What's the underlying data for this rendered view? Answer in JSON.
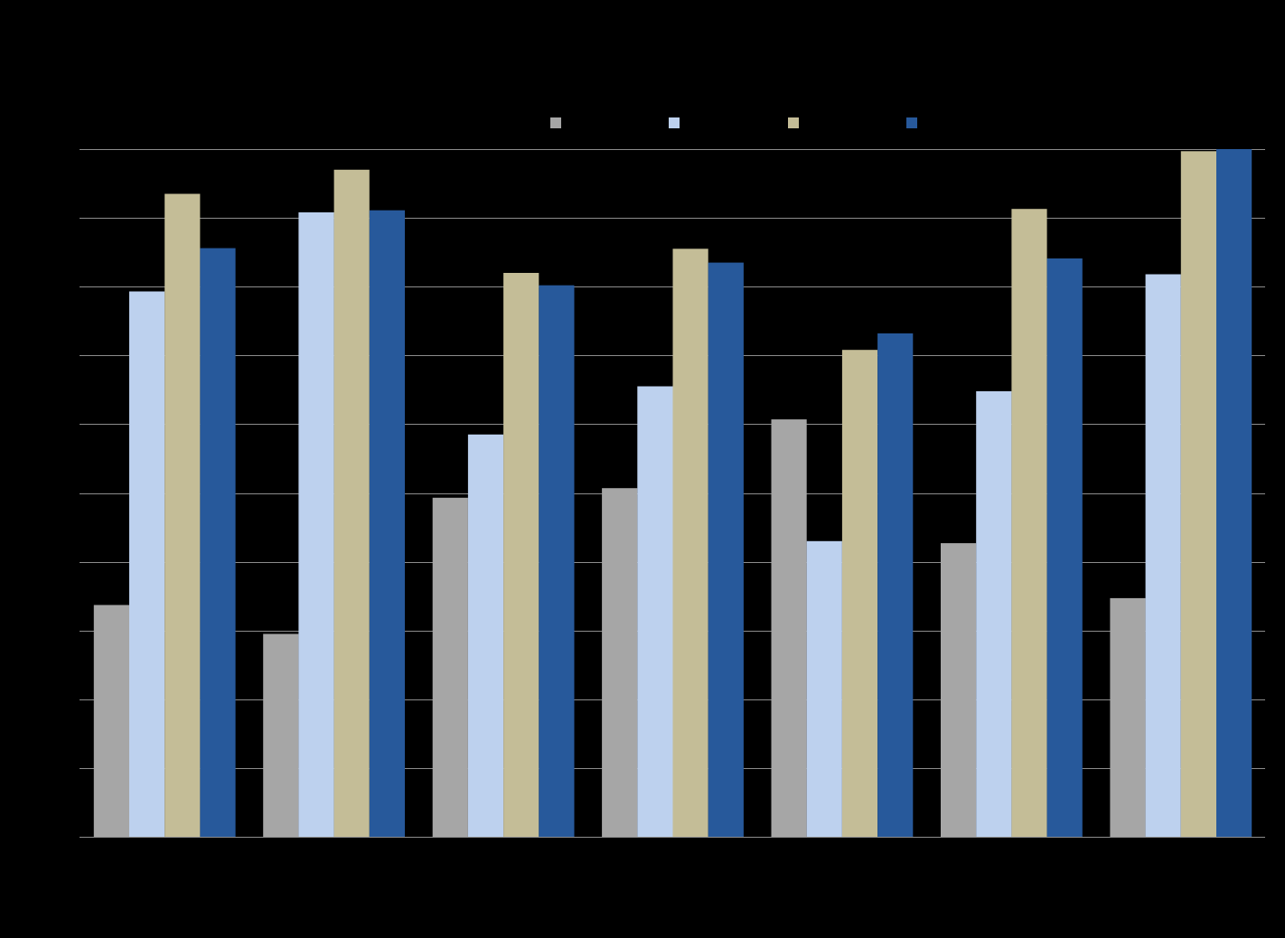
{
  "background": "#000000",
  "chart_data": {
    "type": "bar",
    "title": "",
    "xlabel": "",
    "ylabel": "",
    "categories": [
      "",
      "",
      "",
      "",
      "",
      "",
      ""
    ],
    "ylim": [
      0,
      10
    ],
    "y_ticks": [
      0,
      1,
      2,
      3,
      4,
      5,
      6,
      7,
      8,
      9,
      10
    ],
    "grid": true,
    "legend_position": "top-center",
    "series": [
      {
        "color": "#A6A6A6",
        "values": [
          3.37,
          2.95,
          4.93,
          5.07,
          6.07,
          4.27,
          3.47
        ]
      },
      {
        "color": "#BDD1EE",
        "values": [
          7.93,
          9.08,
          5.85,
          6.55,
          4.3,
          6.48,
          8.18
        ]
      },
      {
        "color": "#C4BD97",
        "values": [
          9.35,
          9.7,
          8.2,
          8.55,
          7.08,
          9.13,
          9.97
        ]
      },
      {
        "color": "#27599B",
        "values": [
          8.56,
          9.11,
          8.02,
          8.35,
          7.32,
          8.41,
          10.0
        ]
      }
    ]
  }
}
